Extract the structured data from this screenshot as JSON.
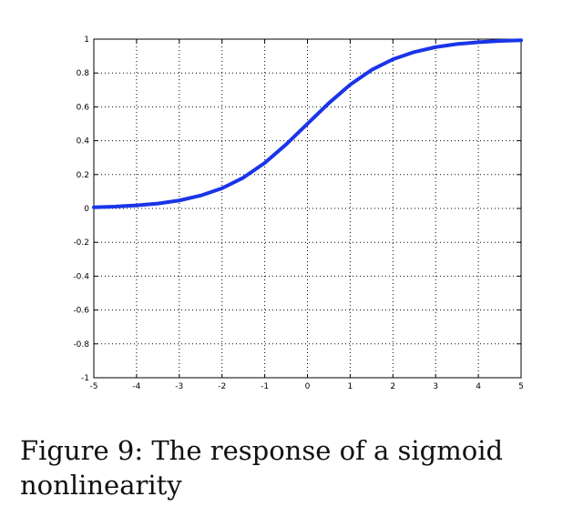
{
  "caption": "Figure 9: The response of a sigmoid nonlinearity",
  "chart_data": {
    "type": "line",
    "title": "",
    "xlabel": "",
    "ylabel": "",
    "xlim": [
      -5,
      5
    ],
    "ylim": [
      -1,
      1
    ],
    "xticks": [
      "-5",
      "-4",
      "-3",
      "-2",
      "-1",
      "0",
      "1",
      "2",
      "3",
      "4",
      "5"
    ],
    "yticks": [
      "1",
      "0.8",
      "0.6",
      "0.4",
      "0.2",
      "0",
      "-0.2",
      "-0.4",
      "-0.6",
      "-0.8",
      "-1"
    ],
    "grid": true,
    "series": [
      {
        "color": "#1a35e8",
        "x": [
          -5,
          -4.5,
          -4,
          -3.5,
          -3,
          -2.5,
          -2,
          -1.5,
          -1,
          -0.5,
          0,
          0.5,
          1,
          1.5,
          2,
          2.5,
          3,
          3.5,
          4,
          4.5,
          5
        ],
        "y": [
          0.007,
          0.011,
          0.018,
          0.029,
          0.047,
          0.076,
          0.119,
          0.182,
          0.269,
          0.378,
          0.5,
          0.622,
          0.731,
          0.818,
          0.881,
          0.924,
          0.953,
          0.971,
          0.982,
          0.989,
          0.993
        ]
      }
    ]
  }
}
